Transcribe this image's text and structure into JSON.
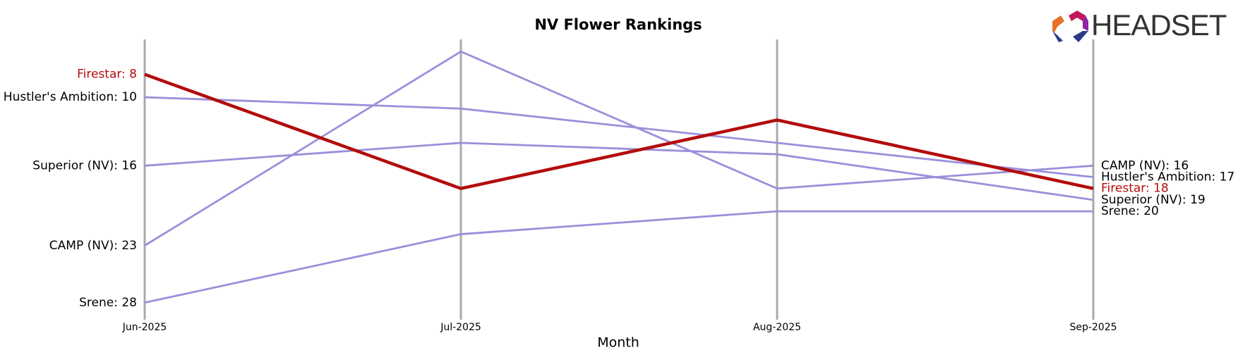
{
  "logo": "HEADSET",
  "chart_data": {
    "type": "line",
    "title": "NV Flower Rankings",
    "x_label": "Month",
    "categories": [
      "Jun-2025",
      "Jul-2025",
      "Aug-2025",
      "Sep-2025"
    ],
    "ylim": [
      29,
      5
    ],
    "highlight": "Firestar",
    "series": [
      {
        "name": "Hustler's Ambition",
        "color": "#9b8fdb",
        "values": [
          10,
          11,
          14,
          17
        ],
        "value_labels": [
          "Hustler's Ambition: 10",
          null,
          null,
          "Hustler's Ambition: 17"
        ]
      },
      {
        "name": "Superior (NV)",
        "color": "#9b8fdb",
        "values": [
          16,
          14,
          15,
          19
        ],
        "value_labels": [
          "Superior (NV): 16",
          null,
          null,
          "Superior (NV): 19"
        ]
      },
      {
        "name": "CAMP (NV)",
        "color": "#9b8fdb",
        "values": [
          23,
          6,
          18,
          16
        ],
        "value_labels": [
          "CAMP (NV): 23",
          null,
          null,
          "CAMP (NV): 16"
        ]
      },
      {
        "name": "Srene",
        "color": "#9b8fdb",
        "values": [
          28,
          22,
          20,
          20
        ],
        "value_labels": [
          "Srene: 28",
          null,
          null,
          "Srene: 20"
        ]
      },
      {
        "name": "Firestar",
        "color": "#b30c0c",
        "values": [
          8,
          18,
          12,
          18
        ],
        "value_labels": [
          "Firestar: 8",
          null,
          null,
          "Firestar: 18"
        ]
      }
    ]
  }
}
